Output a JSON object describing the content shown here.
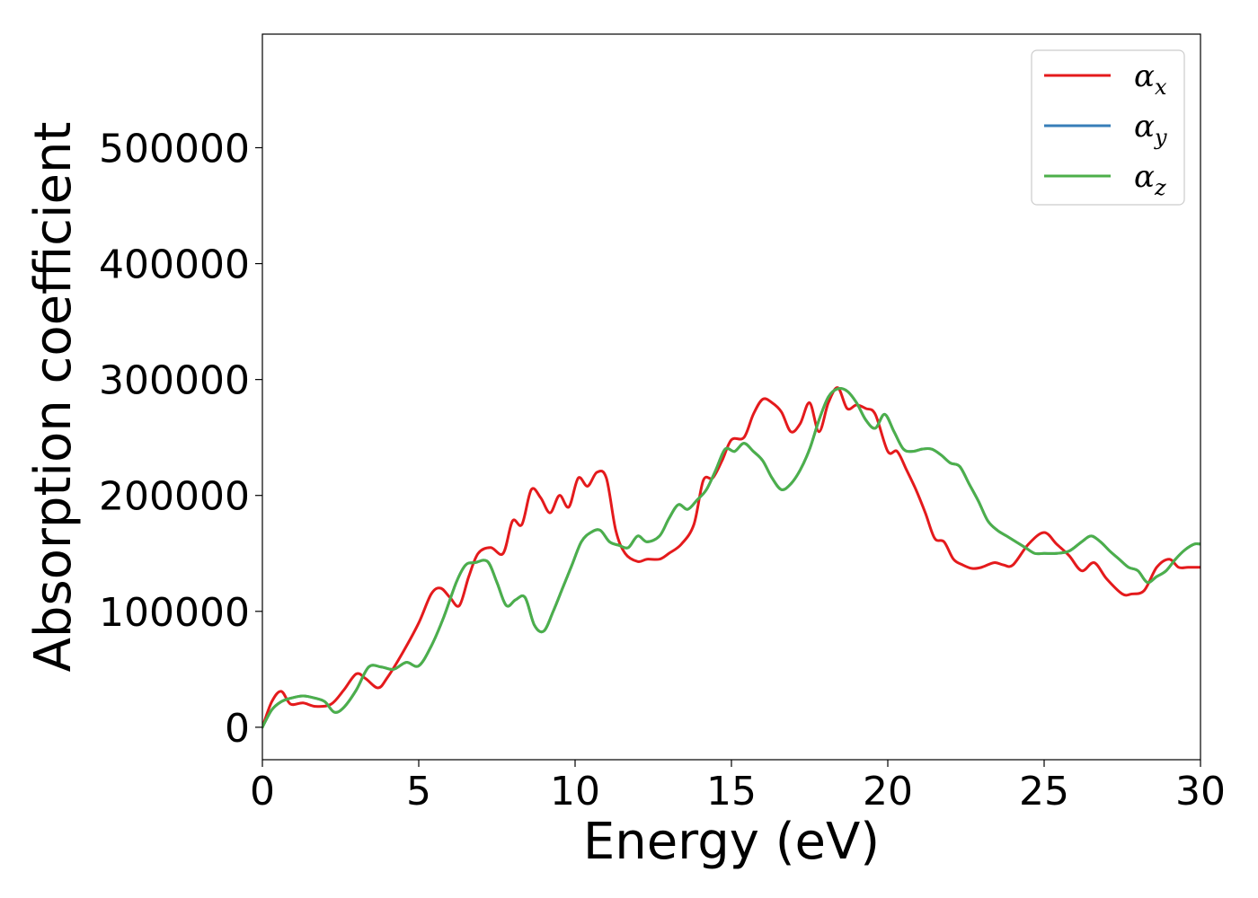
{
  "chart_data": {
    "type": "line",
    "title": "",
    "xlabel": "Energy (eV)",
    "ylabel": "Absorption coefficient",
    "xlim": [
      0,
      30
    ],
    "ylim": [
      -28000,
      598000
    ],
    "xticks": [
      0,
      5,
      10,
      15,
      20,
      25,
      30
    ],
    "yticks": [
      0,
      100000,
      200000,
      300000,
      400000,
      500000
    ],
    "grid": false,
    "legend_position": "top-right",
    "series": [
      {
        "name": "α_x",
        "legend_base": "α",
        "legend_sub": "x",
        "color": "#e41a1c",
        "x": [
          0,
          0.3,
          0.6,
          0.9,
          1.3,
          1.7,
          2.2,
          2.6,
          3.0,
          3.3,
          3.7,
          4.0,
          4.5,
          5.0,
          5.4,
          5.7,
          6.0,
          6.3,
          6.6,
          6.9,
          7.3,
          7.7,
          8.0,
          8.3,
          8.6,
          8.9,
          9.2,
          9.5,
          9.8,
          10.1,
          10.4,
          10.7,
          11.0,
          11.3,
          11.6,
          12.0,
          12.3,
          12.7,
          13.0,
          13.4,
          13.8,
          14.1,
          14.4,
          14.7,
          15.0,
          15.4,
          15.7,
          16.0,
          16.3,
          16.6,
          16.9,
          17.2,
          17.5,
          17.8,
          18.1,
          18.4,
          18.7,
          19.0,
          19.3,
          19.6,
          20.0,
          20.3,
          20.6,
          20.9,
          21.2,
          21.5,
          21.8,
          22.1,
          22.4,
          22.7,
          23.0,
          23.4,
          23.7,
          24.0,
          24.5,
          25.0,
          25.4,
          25.8,
          26.2,
          26.6,
          27.0,
          27.5,
          27.8,
          28.2,
          28.6,
          29.0,
          29.3,
          29.6,
          30.0
        ],
        "y": [
          0,
          22000,
          31000,
          20000,
          21000,
          18000,
          20000,
          32000,
          46000,
          42000,
          34000,
          43000,
          65000,
          90000,
          115000,
          120000,
          112000,
          105000,
          130000,
          150000,
          155000,
          150000,
          178000,
          175000,
          205000,
          198000,
          185000,
          200000,
          190000,
          215000,
          208000,
          220000,
          215000,
          170000,
          150000,
          143000,
          145000,
          145000,
          150000,
          158000,
          175000,
          213000,
          215000,
          230000,
          248000,
          250000,
          270000,
          283000,
          280000,
          272000,
          255000,
          262000,
          280000,
          255000,
          280000,
          293000,
          275000,
          278000,
          275000,
          270000,
          238000,
          238000,
          222000,
          205000,
          185000,
          163000,
          160000,
          145000,
          140000,
          137000,
          138000,
          142000,
          140000,
          140000,
          158000,
          168000,
          158000,
          148000,
          135000,
          142000,
          128000,
          115000,
          115000,
          118000,
          138000,
          145000,
          138000,
          138000,
          138000
        ]
      },
      {
        "name": "α_y",
        "legend_base": "α",
        "legend_sub": "y",
        "color": "#377eb8",
        "x": [
          0,
          0.3,
          0.6,
          0.9,
          1.3,
          1.7,
          2.0,
          2.3,
          2.6,
          3.0,
          3.4,
          3.8,
          4.2,
          4.6,
          5.0,
          5.4,
          5.8,
          6.2,
          6.5,
          6.8,
          7.2,
          7.5,
          7.8,
          8.1,
          8.4,
          8.7,
          9.0,
          9.3,
          9.6,
          9.9,
          10.2,
          10.5,
          10.8,
          11.1,
          11.4,
          11.7,
          12.0,
          12.3,
          12.7,
          13.0,
          13.3,
          13.6,
          13.9,
          14.2,
          14.5,
          14.8,
          15.1,
          15.4,
          15.7,
          16.0,
          16.3,
          16.6,
          16.9,
          17.2,
          17.5,
          17.8,
          18.1,
          18.4,
          18.7,
          19.0,
          19.3,
          19.6,
          19.9,
          20.2,
          20.5,
          20.8,
          21.1,
          21.4,
          21.7,
          22.0,
          22.3,
          22.6,
          22.9,
          23.2,
          23.5,
          23.8,
          24.1,
          24.4,
          24.7,
          25.0,
          25.4,
          25.8,
          26.2,
          26.5,
          26.8,
          27.1,
          27.4,
          27.7,
          28.0,
          28.3,
          28.6,
          28.9,
          29.2,
          29.5,
          29.8,
          30.0
        ],
        "y": [
          0,
          15000,
          22000,
          25000,
          27000,
          25000,
          22000,
          13000,
          17000,
          32000,
          52000,
          52000,
          50000,
          56000,
          53000,
          70000,
          95000,
          125000,
          140000,
          142000,
          143000,
          125000,
          105000,
          110000,
          112000,
          88000,
          83000,
          100000,
          120000,
          140000,
          160000,
          168000,
          170000,
          160000,
          157000,
          155000,
          165000,
          160000,
          165000,
          180000,
          192000,
          188000,
          196000,
          205000,
          222000,
          240000,
          238000,
          245000,
          238000,
          230000,
          215000,
          205000,
          210000,
          222000,
          240000,
          265000,
          285000,
          292000,
          290000,
          280000,
          265000,
          258000,
          270000,
          255000,
          240000,
          238000,
          240000,
          240000,
          235000,
          228000,
          225000,
          210000,
          195000,
          178000,
          170000,
          165000,
          160000,
          155000,
          150000,
          150000,
          150000,
          152000,
          160000,
          165000,
          160000,
          152000,
          145000,
          138000,
          135000,
          125000,
          130000,
          135000,
          145000,
          153000,
          158000,
          158000
        ]
      },
      {
        "name": "α_z",
        "legend_base": "α",
        "legend_sub": "z",
        "color": "#4daf4a",
        "x": [
          0,
          0.3,
          0.6,
          0.9,
          1.3,
          1.7,
          2.0,
          2.3,
          2.6,
          3.0,
          3.4,
          3.8,
          4.2,
          4.6,
          5.0,
          5.4,
          5.8,
          6.2,
          6.5,
          6.8,
          7.2,
          7.5,
          7.8,
          8.1,
          8.4,
          8.7,
          9.0,
          9.3,
          9.6,
          9.9,
          10.2,
          10.5,
          10.8,
          11.1,
          11.4,
          11.7,
          12.0,
          12.3,
          12.7,
          13.0,
          13.3,
          13.6,
          13.9,
          14.2,
          14.5,
          14.8,
          15.1,
          15.4,
          15.7,
          16.0,
          16.3,
          16.6,
          16.9,
          17.2,
          17.5,
          17.8,
          18.1,
          18.4,
          18.7,
          19.0,
          19.3,
          19.6,
          19.9,
          20.2,
          20.5,
          20.8,
          21.1,
          21.4,
          21.7,
          22.0,
          22.3,
          22.6,
          22.9,
          23.2,
          23.5,
          23.8,
          24.1,
          24.4,
          24.7,
          25.0,
          25.4,
          25.8,
          26.2,
          26.5,
          26.8,
          27.1,
          27.4,
          27.7,
          28.0,
          28.3,
          28.6,
          28.9,
          29.2,
          29.5,
          29.8,
          30.0
        ],
        "y": [
          0,
          15000,
          22000,
          25000,
          27000,
          25000,
          22000,
          13000,
          17000,
          32000,
          52000,
          52000,
          50000,
          56000,
          53000,
          70000,
          95000,
          125000,
          140000,
          142000,
          143000,
          125000,
          105000,
          110000,
          112000,
          88000,
          83000,
          100000,
          120000,
          140000,
          160000,
          168000,
          170000,
          160000,
          157000,
          155000,
          165000,
          160000,
          165000,
          180000,
          192000,
          188000,
          196000,
          205000,
          222000,
          240000,
          238000,
          245000,
          238000,
          230000,
          215000,
          205000,
          210000,
          222000,
          240000,
          265000,
          285000,
          292000,
          290000,
          280000,
          265000,
          258000,
          270000,
          255000,
          240000,
          238000,
          240000,
          240000,
          235000,
          228000,
          225000,
          210000,
          195000,
          178000,
          170000,
          165000,
          160000,
          155000,
          150000,
          150000,
          150000,
          152000,
          160000,
          165000,
          160000,
          152000,
          145000,
          138000,
          135000,
          125000,
          130000,
          135000,
          145000,
          153000,
          158000,
          158000
        ]
      }
    ]
  }
}
